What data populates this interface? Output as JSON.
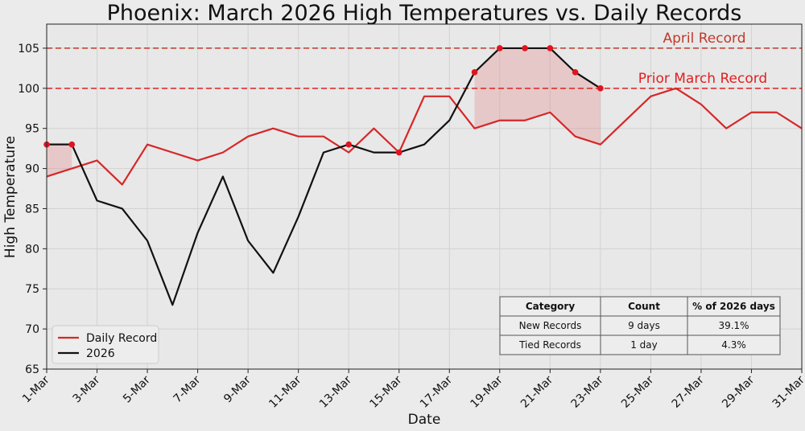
{
  "chart_data": {
    "type": "line",
    "title": "Phoenix: March 2026 High Temperatures vs. Daily Records",
    "xlabel": "Date",
    "ylabel": "High Temperature",
    "ylim": [
      65,
      108
    ],
    "yticks": [
      65,
      70,
      75,
      80,
      85,
      90,
      95,
      100,
      105
    ],
    "xtick_labels": [
      "1-Mar",
      "3-Mar",
      "5-Mar",
      "7-Mar",
      "9-Mar",
      "11-Mar",
      "13-Mar",
      "15-Mar",
      "17-Mar",
      "19-Mar",
      "21-Mar",
      "23-Mar",
      "25-Mar",
      "27-Mar",
      "29-Mar",
      "31-Mar"
    ],
    "grid": true,
    "legend_position": "bottom-left",
    "series": [
      {
        "name": "Daily Record",
        "color": "#d62728",
        "x": [
          1,
          2,
          3,
          4,
          5,
          6,
          7,
          8,
          9,
          10,
          11,
          12,
          13,
          14,
          15,
          16,
          17,
          18,
          19,
          20,
          21,
          22,
          23,
          24,
          25,
          26,
          27,
          28,
          29,
          30,
          31
        ],
        "values": [
          89,
          90,
          91,
          88,
          93,
          92,
          91,
          92,
          94,
          95,
          94,
          94,
          92,
          95,
          92,
          99,
          99,
          95,
          96,
          96,
          97,
          94,
          93,
          96,
          99,
          100,
          98,
          95,
          97,
          97,
          95
        ]
      },
      {
        "name": "2026",
        "color": "#111111",
        "x": [
          1,
          2,
          3,
          4,
          5,
          6,
          7,
          8,
          9,
          10,
          11,
          12,
          13,
          14,
          15,
          16,
          17,
          18,
          19,
          20,
          21,
          22,
          23
        ],
        "values": [
          93,
          93,
          86,
          85,
          81,
          73,
          82,
          89,
          81,
          77,
          84,
          92,
          93,
          92,
          92,
          93,
          96,
          102,
          105,
          105,
          105,
          102,
          100
        ]
      }
    ],
    "record_markers": {
      "x": [
        1,
        2,
        13,
        15,
        18,
        19,
        20,
        21,
        22,
        23
      ],
      "values": [
        93,
        93,
        93,
        92,
        102,
        105,
        105,
        105,
        102,
        100
      ],
      "color": "#e0141e"
    },
    "reference_lines": [
      {
        "label": "April Record",
        "value": 105,
        "color": "#c0392b"
      },
      {
        "label": "Prior March Record",
        "value": 100,
        "color": "#e02020"
      }
    ],
    "table": {
      "headers": [
        "Category",
        "Count",
        "% of 2026 days"
      ],
      "rows": [
        [
          "New Records",
          "9 days",
          "39.1%"
        ],
        [
          "Tied Records",
          "1 day",
          "4.3%"
        ]
      ]
    }
  }
}
